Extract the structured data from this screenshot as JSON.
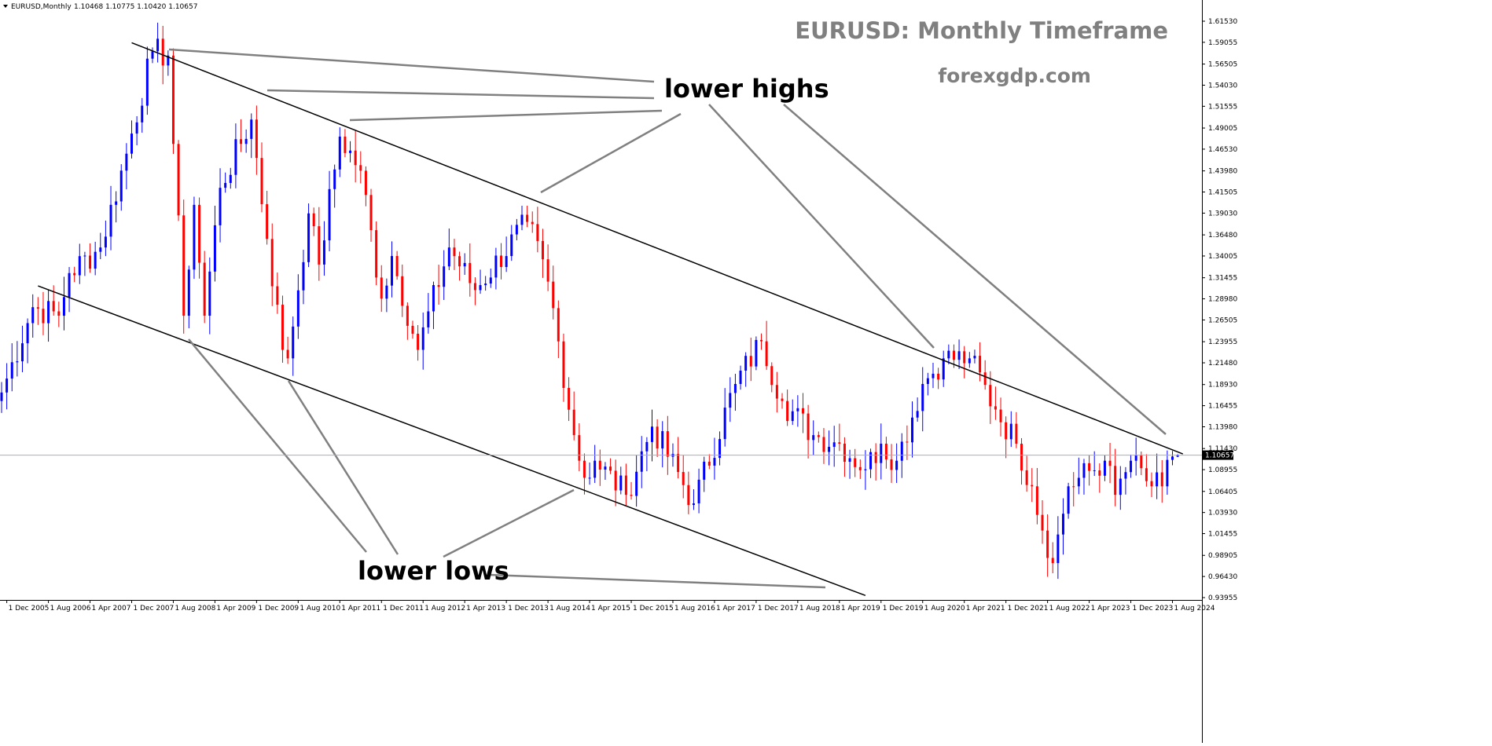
{
  "header": {
    "symbol_text": "EURUSD,Monthly",
    "ohlc_text": "1.10468 1.10775 1.10420 1.10657"
  },
  "watermark": {
    "title": "EURUSD: Monthly Timeframe",
    "site": "forexgdp.com"
  },
  "annotations": {
    "upper": "lower highs",
    "lower": "lower lows"
  },
  "chart_data": {
    "type": "candlestick",
    "symbol": "EURUSD",
    "timeframe": "Monthly",
    "last_price": "1.10657",
    "current_bar": {
      "open": 1.10468,
      "high": 1.10775,
      "low": 1.1042,
      "close": 1.10657
    },
    "ylim": [
      0.93955,
      1.6153
    ],
    "y_ticks": [
      "1.61530",
      "1.59055",
      "1.56505",
      "1.54030",
      "1.51555",
      "1.49005",
      "1.46530",
      "1.43980",
      "1.41505",
      "1.39030",
      "1.36480",
      "1.34005",
      "1.31455",
      "1.28980",
      "1.26505",
      "1.23955",
      "1.21480",
      "1.18930",
      "1.16455",
      "1.13980",
      "1.11430",
      "1.08955",
      "1.06405",
      "1.03930",
      "1.01455",
      "0.98905",
      "0.96430",
      "0.93955"
    ],
    "x_ticks": [
      "1 Dec 2005",
      "1 Aug 2006",
      "1 Apr 2007",
      "1 Dec 2007",
      "1 Aug 2008",
      "1 Apr 2009",
      "1 Dec 2009",
      "1 Aug 2010",
      "1 Apr 2011",
      "1 Dec 2011",
      "1 Aug 2012",
      "1 Apr 2013",
      "1 Dec 2013",
      "1 Aug 2014",
      "1 Apr 2015",
      "1 Dec 2015",
      "1 Aug 2016",
      "1 Apr 2017",
      "1 Dec 2017",
      "1 Aug 2018",
      "1 Apr 2019",
      "1 Dec 2019",
      "1 Aug 2020",
      "1 Apr 2021",
      "1 Dec 2021",
      "1 Aug 2022",
      "1 Apr 2023",
      "1 Dec 2023",
      "1 Aug 2024"
    ],
    "anchors": [
      {
        "date": "2005-11",
        "close": 1.18
      },
      {
        "date": "2006-05",
        "close": 1.28
      },
      {
        "date": "2006-10",
        "close": 1.27
      },
      {
        "date": "2006-12",
        "close": 1.32
      },
      {
        "date": "2007-06",
        "close": 1.35
      },
      {
        "date": "2007-11",
        "close": 1.46
      },
      {
        "date": "2008-04",
        "close": 1.58
      },
      {
        "date": "2008-07",
        "close": 1.575
      },
      {
        "date": "2008-10",
        "close": 1.27
      },
      {
        "date": "2008-12",
        "close": 1.4
      },
      {
        "date": "2009-02",
        "close": 1.27
      },
      {
        "date": "2009-05",
        "close": 1.42
      },
      {
        "date": "2009-11",
        "close": 1.5
      },
      {
        "date": "2010-02",
        "close": 1.36
      },
      {
        "date": "2010-05",
        "close": 1.23
      },
      {
        "date": "2010-06",
        "close": 1.22
      },
      {
        "date": "2010-10",
        "close": 1.39
      },
      {
        "date": "2010-12",
        "close": 1.33
      },
      {
        "date": "2011-04",
        "close": 1.48
      },
      {
        "date": "2011-08",
        "close": 1.44
      },
      {
        "date": "2011-12",
        "close": 1.29
      },
      {
        "date": "2012-02",
        "close": 1.34
      },
      {
        "date": "2012-07",
        "close": 1.23
      },
      {
        "date": "2013-01",
        "close": 1.35
      },
      {
        "date": "2013-06",
        "close": 1.3
      },
      {
        "date": "2014-04",
        "close": 1.38
      },
      {
        "date": "2014-08",
        "close": 1.31
      },
      {
        "date": "2015-01",
        "close": 1.13
      },
      {
        "date": "2015-03",
        "close": 1.08
      },
      {
        "date": "2015-05",
        "close": 1.1
      },
      {
        "date": "2015-11",
        "close": 1.06
      },
      {
        "date": "2016-04",
        "close": 1.14
      },
      {
        "date": "2016-12",
        "close": 1.05
      },
      {
        "date": "2017-08",
        "close": 1.19
      },
      {
        "date": "2018-01",
        "close": 1.24
      },
      {
        "date": "2018-05",
        "close": 1.17
      },
      {
        "date": "2018-11",
        "close": 1.13
      },
      {
        "date": "2019-04",
        "close": 1.12
      },
      {
        "date": "2019-09",
        "close": 1.09
      },
      {
        "date": "2019-12",
        "close": 1.12
      },
      {
        "date": "2020-03",
        "close": 1.1
      },
      {
        "date": "2020-08",
        "close": 1.19
      },
      {
        "date": "2020-12",
        "close": 1.22
      },
      {
        "date": "2021-05",
        "close": 1.22
      },
      {
        "date": "2021-10",
        "close": 1.16
      },
      {
        "date": "2022-02",
        "close": 1.12
      },
      {
        "date": "2022-05",
        "close": 1.07
      },
      {
        "date": "2022-09",
        "close": 0.98
      },
      {
        "date": "2022-12",
        "close": 1.07
      },
      {
        "date": "2023-07",
        "close": 1.1
      },
      {
        "date": "2023-09",
        "close": 1.06
      },
      {
        "date": "2023-12",
        "close": 1.1
      },
      {
        "date": "2024-04",
        "close": 1.07
      },
      {
        "date": "2024-06",
        "close": 1.07
      },
      {
        "date": "2024-08",
        "close": 1.105
      },
      {
        "date": "2024-09",
        "close": 1.10657
      }
    ],
    "trendlines": [
      {
        "name": "upper-channel",
        "from": {
          "date": "2007-12",
          "price": 1.59
        },
        "to": {
          "date": "2024-10",
          "price": 1.108
        }
      },
      {
        "name": "lower-channel",
        "from": {
          "date": "2006-06",
          "price": 1.305
        },
        "to": {
          "date": "2019-09",
          "price": 0.942
        }
      }
    ],
    "colors": {
      "bull": "#0000ff",
      "bear": "#ff0000",
      "trendline": "#000000",
      "pointer": "#808080",
      "price_line": "#9fb0c3",
      "watermark": "#808080"
    },
    "grid": false
  }
}
